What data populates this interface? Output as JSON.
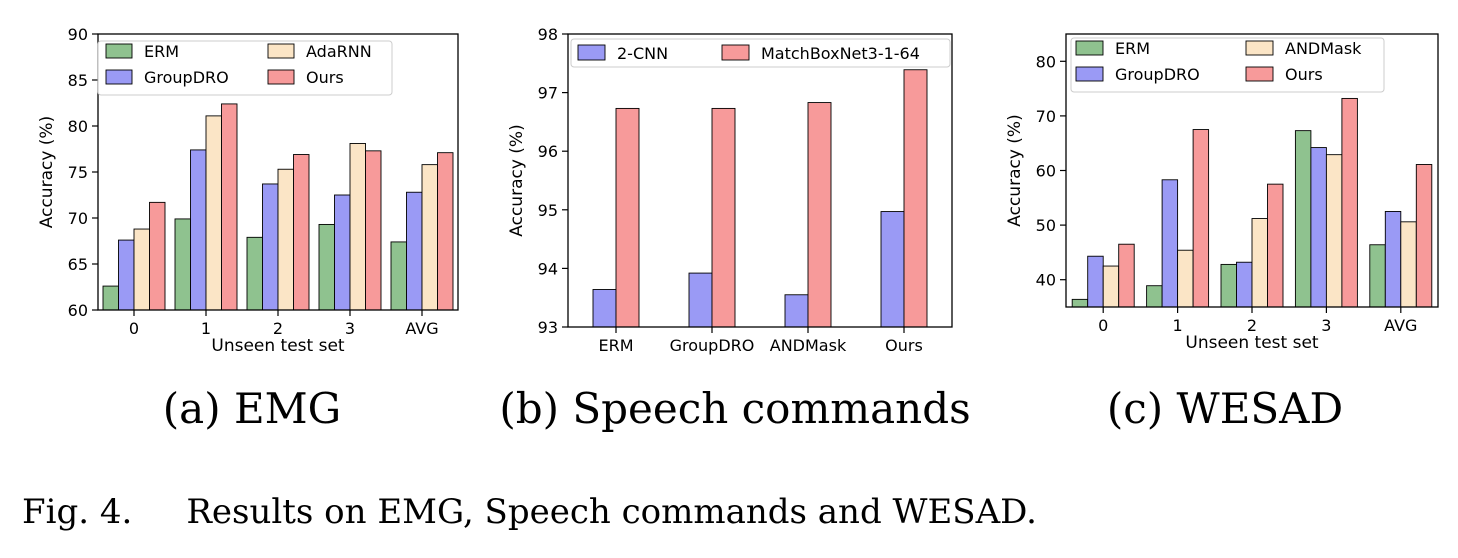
{
  "figure": {
    "caption": "Fig. 4.     Results on EMG, Speech commands and WESAD."
  },
  "colors": {
    "ERM": "#8fc28f",
    "GroupDRO": "#9a9af5",
    "AdaRNN": "#fbe5c6",
    "ANDMask": "#fbe5c6",
    "Ours": "#f79a9a",
    "2-CNN": "#9a9af5",
    "MatchBoxNet3-1-64": "#f79a9a"
  },
  "chart_data": [
    {
      "type": "bar",
      "subtitle": "(a) EMG",
      "xlabel": "Unseen test set",
      "ylabel": "Accuracy (%)",
      "categories": [
        "0",
        "1",
        "2",
        "3",
        "AVG"
      ],
      "ylim": [
        60,
        90
      ],
      "yticks": [
        60,
        65,
        70,
        75,
        80,
        85,
        90
      ],
      "legend_position": "top-left",
      "legend_columns": 2,
      "series": [
        {
          "name": "ERM",
          "values": [
            62.6,
            69.9,
            67.9,
            69.3,
            67.4
          ]
        },
        {
          "name": "GroupDRO",
          "values": [
            67.6,
            77.4,
            73.7,
            72.5,
            72.8
          ]
        },
        {
          "name": "AdaRNN",
          "values": [
            68.8,
            81.1,
            75.3,
            78.1,
            75.8
          ]
        },
        {
          "name": "Ours",
          "values": [
            71.7,
            82.4,
            76.9,
            77.3,
            77.1
          ]
        }
      ]
    },
    {
      "type": "bar",
      "subtitle": "(b) Speech commands",
      "xlabel": "",
      "ylabel": "Accuracy (%)",
      "categories": [
        "ERM",
        "GroupDRO",
        "ANDMask",
        "Ours"
      ],
      "ylim": [
        93,
        98
      ],
      "yticks": [
        93,
        94,
        95,
        96,
        97,
        98
      ],
      "legend_position": "top",
      "legend_columns": 2,
      "series": [
        {
          "name": "2-CNN",
          "values": [
            93.64,
            93.92,
            93.55,
            94.97
          ]
        },
        {
          "name": "MatchBoxNet3-1-64",
          "values": [
            96.73,
            96.73,
            96.83,
            97.39
          ]
        }
      ]
    },
    {
      "type": "bar",
      "subtitle": "(c) WESAD",
      "xlabel": "Unseen test set",
      "ylabel": "Accuracy (%)",
      "categories": [
        "0",
        "1",
        "2",
        "3",
        "AVG"
      ],
      "ylim": [
        35,
        85
      ],
      "yticks": [
        40,
        50,
        60,
        70,
        80
      ],
      "legend_position": "top-left",
      "legend_columns": 2,
      "series": [
        {
          "name": "ERM",
          "values": [
            36.4,
            38.9,
            42.8,
            67.3,
            46.4
          ]
        },
        {
          "name": "GroupDRO",
          "values": [
            44.3,
            58.3,
            43.2,
            64.2,
            52.5
          ]
        },
        {
          "name": "ANDMask",
          "values": [
            42.5,
            45.4,
            51.2,
            62.9,
            50.6
          ]
        },
        {
          "name": "Ours",
          "values": [
            46.5,
            67.5,
            57.5,
            73.2,
            61.1
          ]
        }
      ]
    }
  ]
}
